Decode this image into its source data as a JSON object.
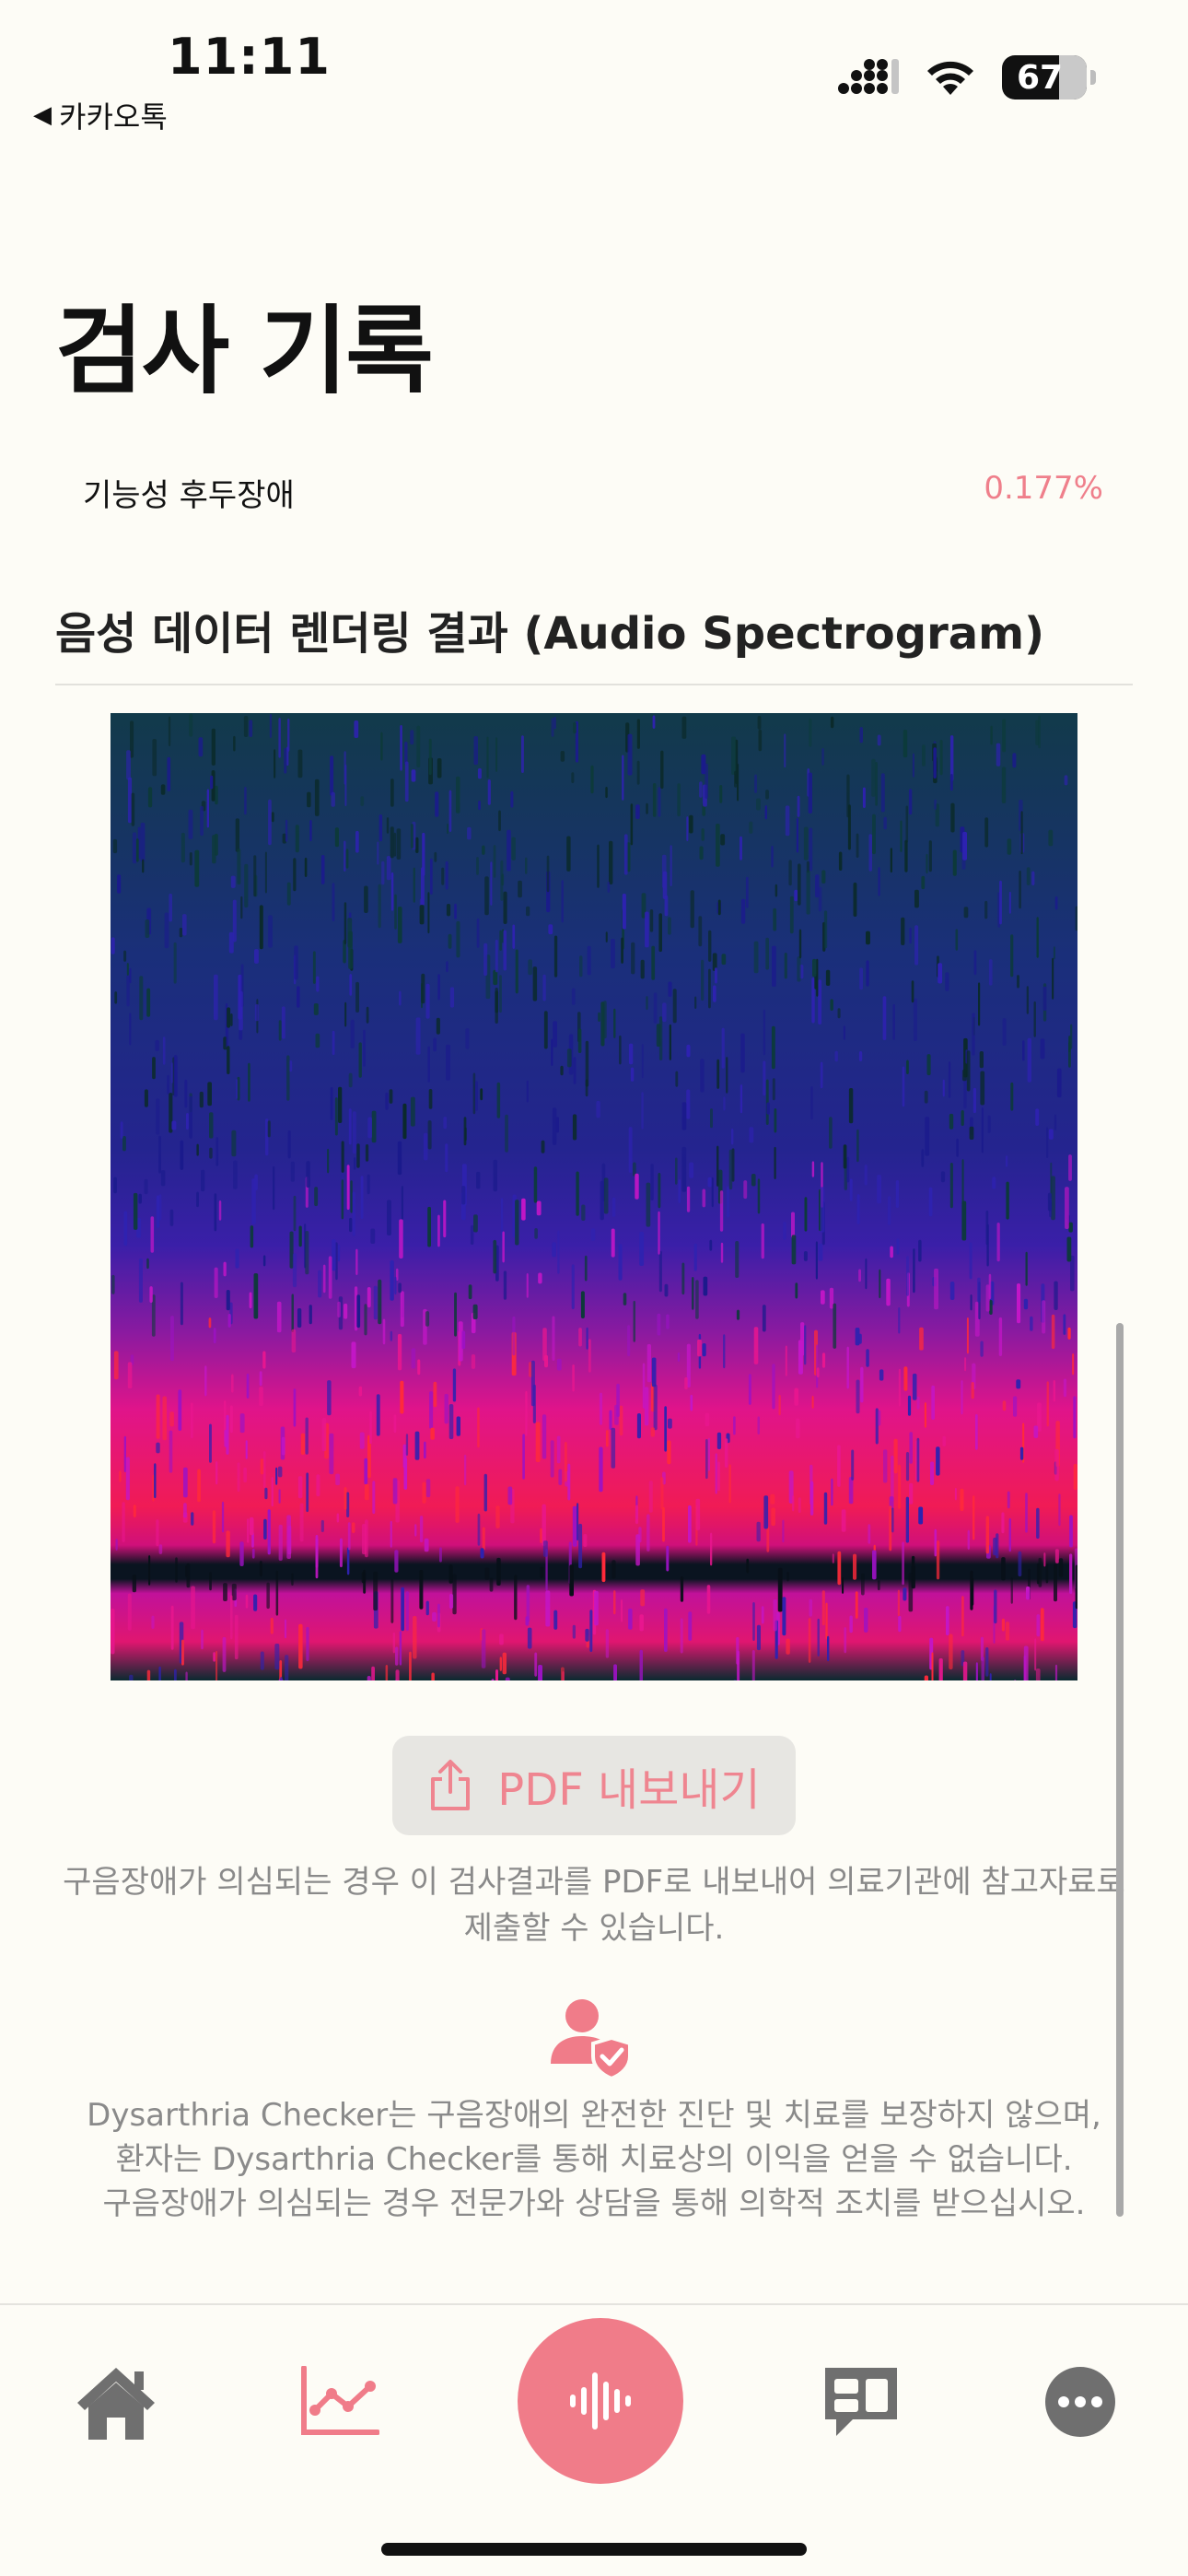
{
  "status_bar": {
    "time": "11:11",
    "back_label": "카카오톡",
    "battery": "67"
  },
  "page": {
    "title": "검사 기록"
  },
  "result": {
    "label": "기능성 후두장애",
    "value": "0.177%"
  },
  "spectrogram": {
    "heading": "음성 데이터 렌더링 결과 (Audio Spectrogram)"
  },
  "export": {
    "button_label": "PDF 내보내기",
    "note": "구음장애가 의심되는 경우 이 검사결과를 PDF로 내보내어 의료기관에 참고자료로 제출할 수 있습니다."
  },
  "disclaimer": {
    "line1": "Dysarthria Checker는 구음장애의 완전한 진단 및 치료를 보장하지 않으며,",
    "line2": "환자는 Dysarthria Checker를 통해 치료상의 이익을 얻을 수 없습니다.",
    "line3": "구음장애가 의심되는 경우 전문가와 상담을 통해 의학적 조치를 받으십시오."
  },
  "tab_bar": {
    "items": [
      {
        "icon": "home-icon",
        "active": false
      },
      {
        "icon": "chart-icon",
        "active": true
      },
      {
        "icon": "record-icon",
        "active": false
      },
      {
        "icon": "chat-icon",
        "active": false
      },
      {
        "icon": "more-icon",
        "active": false
      }
    ]
  },
  "colors": {
    "accent": "#f07c89",
    "muted_text": "#8a8a8a",
    "background": "#fdfcf6"
  }
}
